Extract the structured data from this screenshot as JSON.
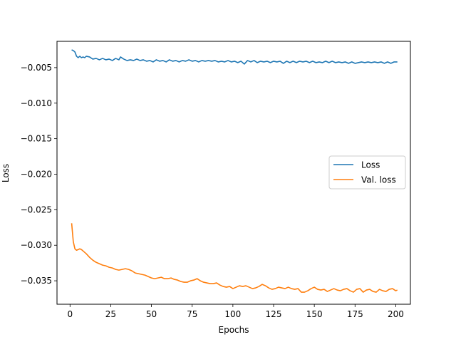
{
  "chart_data": {
    "type": "line",
    "title": "",
    "xlabel": "Epochs",
    "ylabel": "Loss",
    "xlim": [
      -8,
      209
    ],
    "ylim": [
      -0.0383,
      -0.0013
    ],
    "xticks": [
      0,
      25,
      50,
      75,
      100,
      125,
      150,
      175,
      200
    ],
    "yticks": [
      -0.035,
      -0.03,
      -0.025,
      -0.02,
      -0.015,
      -0.01,
      -0.005
    ],
    "ytick_labels": [
      "−0.035",
      "−0.030",
      "−0.025",
      "−0.020",
      "−0.015",
      "−0.010",
      "−0.005"
    ],
    "legend_position": "center-right",
    "grid": false,
    "series": [
      {
        "name": "Loss",
        "color": "#1f77b4",
        "points": [
          [
            1,
            -0.0025
          ],
          [
            2,
            -0.0026
          ],
          [
            3,
            -0.0028
          ],
          [
            4,
            -0.0034
          ],
          [
            5,
            -0.0036
          ],
          [
            6,
            -0.0034
          ],
          [
            7,
            -0.0036
          ],
          [
            8,
            -0.0035
          ],
          [
            9,
            -0.0036
          ],
          [
            10,
            -0.0034
          ],
          [
            12,
            -0.0035
          ],
          [
            14,
            -0.0038
          ],
          [
            16,
            -0.0037
          ],
          [
            18,
            -0.0039
          ],
          [
            20,
            -0.0037
          ],
          [
            22,
            -0.0039
          ],
          [
            24,
            -0.0038
          ],
          [
            26,
            -0.004
          ],
          [
            28,
            -0.0037
          ],
          [
            30,
            -0.0039
          ],
          [
            31,
            -0.0035
          ],
          [
            33,
            -0.0038
          ],
          [
            35,
            -0.004
          ],
          [
            37,
            -0.0039
          ],
          [
            39,
            -0.004
          ],
          [
            41,
            -0.0038
          ],
          [
            43,
            -0.004
          ],
          [
            45,
            -0.0039
          ],
          [
            47,
            -0.0041
          ],
          [
            49,
            -0.004
          ],
          [
            51,
            -0.0042
          ],
          [
            53,
            -0.0039
          ],
          [
            55,
            -0.0041
          ],
          [
            57,
            -0.004
          ],
          [
            59,
            -0.0042
          ],
          [
            61,
            -0.0039
          ],
          [
            63,
            -0.0041
          ],
          [
            65,
            -0.004
          ],
          [
            67,
            -0.0042
          ],
          [
            69,
            -0.004
          ],
          [
            71,
            -0.0041
          ],
          [
            73,
            -0.0039
          ],
          [
            75,
            -0.0041
          ],
          [
            77,
            -0.004
          ],
          [
            79,
            -0.0042
          ],
          [
            81,
            -0.004
          ],
          [
            83,
            -0.0041
          ],
          [
            85,
            -0.004
          ],
          [
            87,
            -0.0041
          ],
          [
            89,
            -0.004
          ],
          [
            91,
            -0.0042
          ],
          [
            93,
            -0.0041
          ],
          [
            95,
            -0.0042
          ],
          [
            97,
            -0.004
          ],
          [
            99,
            -0.0042
          ],
          [
            101,
            -0.0041
          ],
          [
            103,
            -0.0043
          ],
          [
            105,
            -0.0041
          ],
          [
            107,
            -0.0045
          ],
          [
            109,
            -0.004
          ],
          [
            111,
            -0.0042
          ],
          [
            113,
            -0.004
          ],
          [
            115,
            -0.0043
          ],
          [
            117,
            -0.0041
          ],
          [
            119,
            -0.0042
          ],
          [
            121,
            -0.0041
          ],
          [
            123,
            -0.0043
          ],
          [
            125,
            -0.0041
          ],
          [
            127,
            -0.0042
          ],
          [
            129,
            -0.0041
          ],
          [
            131,
            -0.0044
          ],
          [
            133,
            -0.0041
          ],
          [
            135,
            -0.0043
          ],
          [
            137,
            -0.0041
          ],
          [
            139,
            -0.0043
          ],
          [
            141,
            -0.0041
          ],
          [
            143,
            -0.0042
          ],
          [
            145,
            -0.0041
          ],
          [
            147,
            -0.0043
          ],
          [
            149,
            -0.0041
          ],
          [
            151,
            -0.0043
          ],
          [
            153,
            -0.0042
          ],
          [
            155,
            -0.0043
          ],
          [
            157,
            -0.0041
          ],
          [
            159,
            -0.0043
          ],
          [
            161,
            -0.0041
          ],
          [
            163,
            -0.0043
          ],
          [
            165,
            -0.0042
          ],
          [
            167,
            -0.0043
          ],
          [
            169,
            -0.0042
          ],
          [
            171,
            -0.0044
          ],
          [
            173,
            -0.0042
          ],
          [
            175,
            -0.0044
          ],
          [
            177,
            -0.0043
          ],
          [
            179,
            -0.0042
          ],
          [
            181,
            -0.0043
          ],
          [
            183,
            -0.0042
          ],
          [
            185,
            -0.0043
          ],
          [
            187,
            -0.0042
          ],
          [
            189,
            -0.0043
          ],
          [
            191,
            -0.0042
          ],
          [
            193,
            -0.0044
          ],
          [
            195,
            -0.0042
          ],
          [
            197,
            -0.0044
          ],
          [
            199,
            -0.0042
          ],
          [
            201,
            -0.0042
          ]
        ]
      },
      {
        "name": "Val. loss",
        "color": "#ff7f0e",
        "points": [
          [
            1,
            -0.0269
          ],
          [
            2,
            -0.0295
          ],
          [
            3,
            -0.0305
          ],
          [
            4,
            -0.0307
          ],
          [
            5,
            -0.0306
          ],
          [
            6,
            -0.0305
          ],
          [
            7,
            -0.0306
          ],
          [
            8,
            -0.0308
          ],
          [
            10,
            -0.0312
          ],
          [
            12,
            -0.0317
          ],
          [
            14,
            -0.0321
          ],
          [
            16,
            -0.0324
          ],
          [
            18,
            -0.0326
          ],
          [
            20,
            -0.0328
          ],
          [
            22,
            -0.0329
          ],
          [
            24,
            -0.0331
          ],
          [
            26,
            -0.0332
          ],
          [
            28,
            -0.0334
          ],
          [
            30,
            -0.0335
          ],
          [
            32,
            -0.0334
          ],
          [
            34,
            -0.0333
          ],
          [
            36,
            -0.0334
          ],
          [
            38,
            -0.0336
          ],
          [
            40,
            -0.0339
          ],
          [
            42,
            -0.034
          ],
          [
            44,
            -0.0341
          ],
          [
            46,
            -0.0342
          ],
          [
            48,
            -0.0344
          ],
          [
            50,
            -0.0346
          ],
          [
            52,
            -0.0347
          ],
          [
            54,
            -0.0346
          ],
          [
            56,
            -0.0345
          ],
          [
            58,
            -0.0347
          ],
          [
            60,
            -0.0347
          ],
          [
            62,
            -0.0346
          ],
          [
            64,
            -0.0348
          ],
          [
            66,
            -0.0349
          ],
          [
            68,
            -0.0351
          ],
          [
            70,
            -0.0352
          ],
          [
            72,
            -0.0352
          ],
          [
            74,
            -0.035
          ],
          [
            76,
            -0.0349
          ],
          [
            78,
            -0.0347
          ],
          [
            80,
            -0.035
          ],
          [
            82,
            -0.0352
          ],
          [
            84,
            -0.0353
          ],
          [
            86,
            -0.0354
          ],
          [
            88,
            -0.0354
          ],
          [
            90,
            -0.0353
          ],
          [
            92,
            -0.0356
          ],
          [
            94,
            -0.0358
          ],
          [
            96,
            -0.0359
          ],
          [
            98,
            -0.0358
          ],
          [
            100,
            -0.0361
          ],
          [
            102,
            -0.0359
          ],
          [
            104,
            -0.0357
          ],
          [
            106,
            -0.0358
          ],
          [
            108,
            -0.0357
          ],
          [
            110,
            -0.0359
          ],
          [
            112,
            -0.0361
          ],
          [
            114,
            -0.036
          ],
          [
            116,
            -0.0358
          ],
          [
            118,
            -0.0355
          ],
          [
            120,
            -0.0357
          ],
          [
            122,
            -0.036
          ],
          [
            124,
            -0.0362
          ],
          [
            126,
            -0.0361
          ],
          [
            128,
            -0.0359
          ],
          [
            130,
            -0.036
          ],
          [
            132,
            -0.0361
          ],
          [
            134,
            -0.0359
          ],
          [
            136,
            -0.0361
          ],
          [
            138,
            -0.0362
          ],
          [
            140,
            -0.0361
          ],
          [
            142,
            -0.0366
          ],
          [
            144,
            -0.0366
          ],
          [
            146,
            -0.0364
          ],
          [
            148,
            -0.0361
          ],
          [
            150,
            -0.0359
          ],
          [
            152,
            -0.0362
          ],
          [
            154,
            -0.0363
          ],
          [
            156,
            -0.0362
          ],
          [
            158,
            -0.0365
          ],
          [
            160,
            -0.0363
          ],
          [
            162,
            -0.0361
          ],
          [
            164,
            -0.0363
          ],
          [
            166,
            -0.0364
          ],
          [
            168,
            -0.0362
          ],
          [
            170,
            -0.0361
          ],
          [
            172,
            -0.0364
          ],
          [
            174,
            -0.0366
          ],
          [
            176,
            -0.0362
          ],
          [
            178,
            -0.0361
          ],
          [
            180,
            -0.0366
          ],
          [
            182,
            -0.0363
          ],
          [
            184,
            -0.0362
          ],
          [
            186,
            -0.0365
          ],
          [
            188,
            -0.0366
          ],
          [
            190,
            -0.0362
          ],
          [
            192,
            -0.0364
          ],
          [
            194,
            -0.0365
          ],
          [
            196,
            -0.0362
          ],
          [
            198,
            -0.0361
          ],
          [
            200,
            -0.0364
          ],
          [
            201,
            -0.0363
          ]
        ]
      }
    ]
  }
}
